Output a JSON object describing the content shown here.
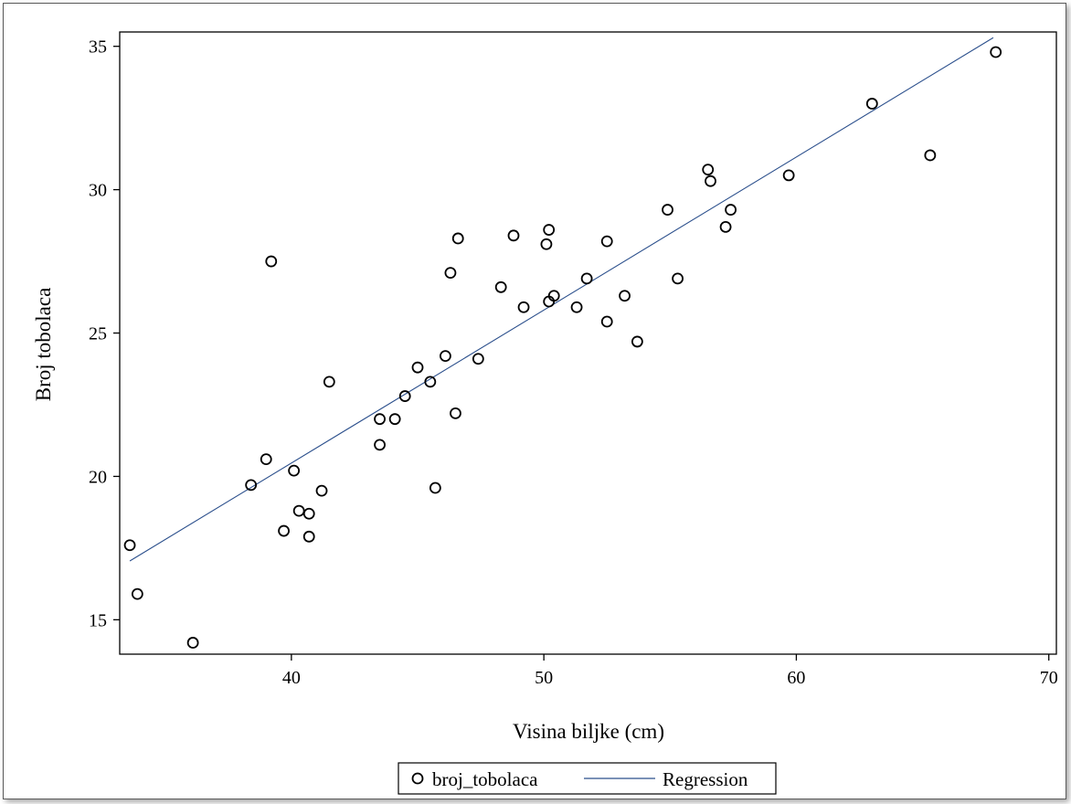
{
  "chart_data": {
    "type": "scatter",
    "title": "",
    "xlabel": "Visina biljke (cm)",
    "ylabel": "Broj tobolaca",
    "xlim": [
      33.2,
      70.3
    ],
    "ylim": [
      13.8,
      35.5
    ],
    "x_ticks": [
      40,
      50,
      60,
      70
    ],
    "y_ticks": [
      15,
      20,
      25,
      30,
      35
    ],
    "grid": false,
    "legend_position": "bottom",
    "series": [
      {
        "name": "broj_tobolaca",
        "marker": "circle-open",
        "points": [
          [
            33.6,
            17.6
          ],
          [
            33.9,
            15.9
          ],
          [
            36.1,
            14.2
          ],
          [
            38.4,
            19.7
          ],
          [
            39.0,
            20.6
          ],
          [
            39.2,
            27.5
          ],
          [
            39.7,
            18.1
          ],
          [
            40.1,
            20.2
          ],
          [
            40.3,
            18.8
          ],
          [
            40.7,
            18.7
          ],
          [
            40.7,
            17.9
          ],
          [
            41.2,
            19.5
          ],
          [
            41.5,
            23.3
          ],
          [
            43.5,
            22.0
          ],
          [
            43.5,
            21.1
          ],
          [
            44.1,
            22.0
          ],
          [
            44.5,
            22.8
          ],
          [
            45.0,
            23.8
          ],
          [
            45.5,
            23.3
          ],
          [
            45.7,
            19.6
          ],
          [
            46.1,
            24.2
          ],
          [
            46.3,
            27.1
          ],
          [
            46.5,
            22.2
          ],
          [
            46.6,
            28.3
          ],
          [
            47.4,
            24.1
          ],
          [
            48.3,
            26.6
          ],
          [
            48.8,
            28.4
          ],
          [
            49.2,
            25.9
          ],
          [
            50.1,
            28.1
          ],
          [
            50.2,
            28.6
          ],
          [
            50.2,
            26.1
          ],
          [
            50.4,
            26.3
          ],
          [
            51.3,
            25.9
          ],
          [
            51.7,
            26.9
          ],
          [
            52.5,
            28.2
          ],
          [
            52.5,
            25.4
          ],
          [
            53.2,
            26.3
          ],
          [
            53.7,
            24.7
          ],
          [
            54.9,
            29.3
          ],
          [
            55.3,
            26.9
          ],
          [
            56.5,
            30.7
          ],
          [
            56.6,
            30.3
          ],
          [
            57.2,
            28.7
          ],
          [
            57.4,
            29.3
          ],
          [
            59.7,
            30.5
          ],
          [
            63.0,
            33.0
          ],
          [
            65.3,
            31.2
          ],
          [
            67.9,
            34.8
          ]
        ]
      },
      {
        "name": "Regression",
        "type": "line",
        "points": [
          [
            33.6,
            17.05
          ],
          [
            67.8,
            35.3
          ]
        ]
      }
    ]
  },
  "colors": {
    "marker": "#000000",
    "regression": "#2b4f8c",
    "axis": "#000000"
  }
}
